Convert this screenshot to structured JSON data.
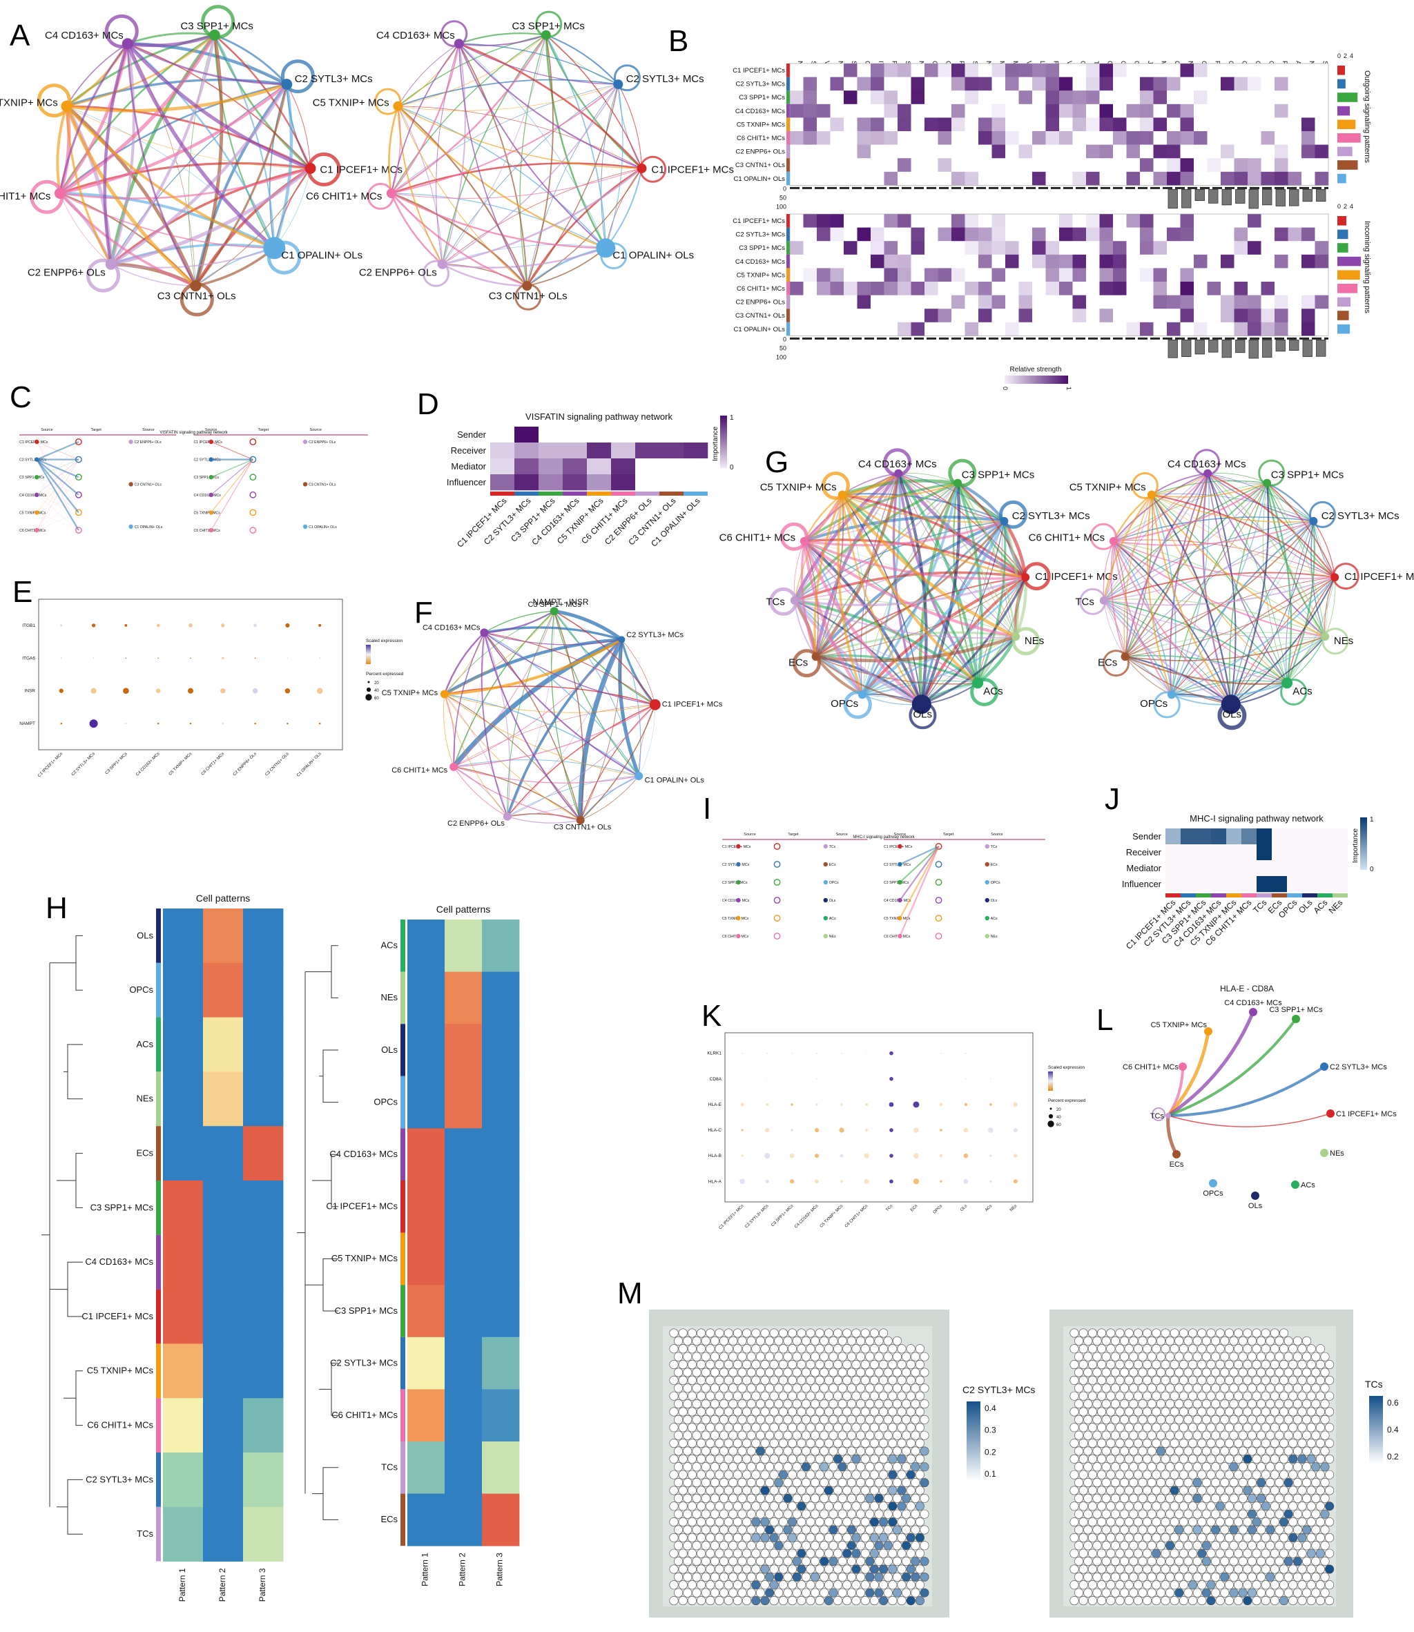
{
  "panels": [
    "A",
    "B",
    "C",
    "D",
    "E",
    "F",
    "G",
    "H",
    "I",
    "J",
    "K",
    "L",
    "M"
  ],
  "colors": {
    "C1 IPCEF1+ MCs": "#d62728",
    "C2 SYTL3+ MCs": "#2e74b5",
    "C3 SPP1+ MCs": "#3aa640",
    "C4 CD163+ MCs": "#8e44ad",
    "C5 TXNIP+ MCs": "#f39c12",
    "C6 CHIT1+ MCs": "#f06fa8",
    "C2 ENPP6+ OLs": "#c39bd3",
    "C3 CNTN1+ OLs": "#a0522d",
    "C1 OPALIN+ OLs": "#5dade2",
    "TCs": "#c39bd3",
    "ECs": "#a0522d",
    "OPCs": "#5dade2",
    "OLs": "#1f2a6e",
    "ACs": "#27ae60",
    "NEs": "#a9d18e",
    "heat_purple": "#4a0f6b",
    "heat_blue": "#0b3c6e"
  },
  "A": {
    "nodes": [
      "C3 SPP1+ MCs",
      "C2 SYTL3+ MCs",
      "C1 IPCEF1+ MCs",
      "C1 OPALIN+ OLs",
      "C3 CNTN1+ OLs",
      "C2 ENPP6+ OLs",
      "C6 CHIT1+ MCs",
      "C5 TXNIP+ MCs",
      "C4 CD163+ MCs"
    ]
  },
  "B": {
    "pathways": [
      "NECTIN",
      "SEMA6",
      "VEGF",
      "NGL",
      "SEMA5",
      "CDH",
      "ITGB2",
      "PTN",
      "SEMA3",
      "NRG",
      "CD99",
      "CD86",
      "PECAM1",
      "SEMA4",
      "NEGR",
      "MAG",
      "MPZ",
      "VISTA",
      "LAMININ",
      "FGF",
      "VISFATIN",
      "GALECTIN",
      "TGFb",
      "GAS",
      "COLLAGEN",
      "GRN",
      "JAM",
      "MHC-II",
      "CLDN",
      "NRXN",
      "CNTN",
      "PSAP",
      "CADM",
      "CDH1",
      "CD22",
      "COMPLEMENT",
      "PTPRM",
      "APP",
      "NCAM",
      "SPP1"
    ],
    "rows": [
      "C1 IPCEF1+ MCs",
      "C2 SYTL3+ MCs",
      "C3 SPP1+ MCs",
      "C4 CD163+ MCs",
      "C5 TXNIP+ MCs",
      "C6 CHIT1+ MCs",
      "C2 ENPP6+ OLs",
      "C3 CNTN1+ OLs",
      "C1 OPALIN+ OLs"
    ],
    "outgoing_label": "Outgoing signaling patterns",
    "incoming_label": "Incoming signaling patterns",
    "legend_title": "Relative strength",
    "legend_min": "0",
    "legend_max": "1",
    "bar_ticks": [
      "0",
      "50",
      "100"
    ],
    "side_ticks": [
      "0",
      "2",
      "4"
    ]
  },
  "C": {
    "title": "VISFATIN signaling pathway network",
    "source": "Source",
    "target": "Target",
    "left_rows": [
      "C1 IPCEF1+ MCs",
      "C2 SYTL3+ MCs",
      "C3 SPP1+ MCs",
      "C4 CD163+ MCs",
      "C5 TXNIP+ MCs",
      "C6 CHIT1+ MCs"
    ],
    "right_targets": [
      "C2 ENPP6+ OLs",
      "C3 CNTN1+ OLs",
      "C1 OPALIN+ OLs"
    ]
  },
  "D": {
    "title": "VISFATIN signaling pathway network",
    "rows": [
      "Sender",
      "Receiver",
      "Mediator",
      "Influencer"
    ],
    "cols": [
      "C1 IPCEF1+ MCs",
      "C2 SYTL3+ MCs",
      "C3 SPP1+ MCs",
      "C4 CD163+ MCs",
      "C5 TXNIP+ MCs",
      "C6 CHIT1+ MCs",
      "C2 ENPP6+ OLs",
      "C3 CNTN1+ OLs",
      "C1 OPALIN+ OLs"
    ],
    "values": [
      [
        0,
        1,
        0,
        0,
        0,
        0,
        0,
        0,
        0
      ],
      [
        0.15,
        0.35,
        0.25,
        0.25,
        0.85,
        0.2,
        0.8,
        0.8,
        0.85
      ],
      [
        0.1,
        0.7,
        0.4,
        0.7,
        0.15,
        0.85,
        0,
        0,
        0
      ],
      [
        0.6,
        0.9,
        0.5,
        0.8,
        0.4,
        0.9,
        0,
        0,
        0
      ]
    ],
    "legend_title": "Importance",
    "legend_min": "0",
    "legend_max": "1"
  },
  "E": {
    "genes": [
      "ITGB1",
      "ITGA6",
      "INSR",
      "NAMPT"
    ],
    "groups": [
      "C1 IPCEF1+ MCs",
      "C2 SYTL3+ MCs",
      "C3 SPP1+ MCs",
      "C4 CD163+ MCs",
      "C5 TXNIP+ MCs",
      "C6 CHIT1+ MCs",
      "C2 ENPP6+ OLs",
      "C3 CNTN1+ OLs",
      "C1 OPALIN+ OLs"
    ],
    "legend_scaled": "Scaled expression",
    "legend_pct": "Percent expressed",
    "pct_ticks": [
      "20",
      "40",
      "60"
    ]
  },
  "F": {
    "title": "NAMPT - INSR",
    "nodes": [
      "C3 SPP1+ MCs",
      "C2 SYTL3+ MCs",
      "C1 IPCEF1+ MCs",
      "C1 OPALIN+ OLs",
      "C3 CNTN1+ OLs",
      "C2 ENPP6+ OLs",
      "C6 CHIT1+ MCs",
      "C5 TXNIP+ MCs",
      "C4 CD163+ MCs"
    ]
  },
  "G": {
    "nodes": [
      "C4 CD163+ MCs",
      "C3 SPP1+ MCs",
      "C2 SYTL3+ MCs",
      "C1 IPCEF1+ MCs",
      "NEs",
      "ACs",
      "OLs",
      "OPCs",
      "ECs",
      "TCs",
      "C6 CHIT1+ MCs",
      "C5 TXNIP+ MCs"
    ]
  },
  "H": {
    "title": "Cell patterns",
    "left_rows": [
      "OLs",
      "OPCs",
      "ACs",
      "NEs",
      "ECs",
      "C3 SPP1+ MCs",
      "C4 CD163+ MCs",
      "C1 IPCEF1+ MCs",
      "C5 TXNIP+ MCs",
      "C6 CHIT1+ MCs",
      "C2 SYTL3+ MCs",
      "TCs"
    ],
    "left_values": [
      [
        0.3,
        0.8,
        0.1
      ],
      [
        0.1,
        0.85,
        0.1
      ],
      [
        0.3,
        0.62,
        0.35
      ],
      [
        0.1,
        0.65,
        0.35
      ],
      [
        0.1,
        0.1,
        0.9
      ],
      [
        0.9,
        0.1,
        0.1
      ],
      [
        0.9,
        0.1,
        0.1
      ],
      [
        0.9,
        0.1,
        0.1
      ],
      [
        0.7,
        0.3,
        0.3
      ],
      [
        0.6,
        0.1,
        0.45
      ],
      [
        0.5,
        0.1,
        0.52
      ],
      [
        0.47,
        0.2,
        0.55
      ]
    ],
    "right_rows": [
      "ACs",
      "NEs",
      "OLs",
      "OPCs",
      "C4 CD163+ MCs",
      "C1 IPCEF1+ MCs",
      "C5 TXNIP+ MCs",
      "C3 SPP1+ MCs",
      "C2 SYTL3+ MCs",
      "C6 CHIT1+ MCs",
      "TCs",
      "ECs"
    ],
    "right_values": [
      [
        0.3,
        0.55,
        0.45
      ],
      [
        0.1,
        0.8,
        0.3
      ],
      [
        0.2,
        0.85,
        0.1
      ],
      [
        0.15,
        0.85,
        0.1
      ],
      [
        0.9,
        0.1,
        0.1
      ],
      [
        0.9,
        0.1,
        0.1
      ],
      [
        0.9,
        0.1,
        0.1
      ],
      [
        0.85,
        0.2,
        0.1
      ],
      [
        0.6,
        0.1,
        0.45
      ],
      [
        0.75,
        0.1,
        0.38
      ],
      [
        0.47,
        0.25,
        0.55
      ],
      [
        0.1,
        0.1,
        0.9
      ]
    ],
    "cols": [
      "Pattern 1",
      "Pattern 2",
      "Pattern 3"
    ]
  },
  "I": {
    "title": "MHC-I signaling pathway network",
    "source": "Source",
    "target": "Target",
    "left_rows": [
      "C1 IPCEF1+ MCs",
      "C2 SYTL3+ MCs",
      "C3 SPP1+ MCs",
      "C4 CD163+ MCs",
      "C5 TXNIP+ MCs",
      "C6 CHIT1+ MCs"
    ],
    "right_targets": [
      "TCs",
      "ECs",
      "OPCs",
      "OLs",
      "ACs",
      "NEs"
    ]
  },
  "J": {
    "title": "MHC-I signaling pathway network",
    "rows": [
      "Sender",
      "Receiver",
      "Mediator",
      "Influencer"
    ],
    "cols": [
      "C1 IPCEF1+ MCs",
      "C2 SYTL3+ MCs",
      "C3 SPP1+ MCs",
      "C4 CD163+ MCs",
      "C5 TXNIP+ MCs",
      "C6 CHIT1+ MCs",
      "TCs",
      "ECs",
      "OPCs",
      "OLs",
      "ACs",
      "NEs"
    ],
    "values": [
      [
        0.3,
        0.8,
        0.8,
        0.85,
        0.3,
        0.6,
        1,
        0,
        0,
        0,
        0,
        0
      ],
      [
        0,
        0,
        0,
        0,
        0,
        0,
        1,
        0,
        0,
        0,
        0,
        0
      ],
      [
        0,
        0,
        0,
        0,
        0,
        0,
        0,
        0,
        0,
        0,
        0,
        0
      ],
      [
        0,
        0,
        0,
        0,
        0,
        0,
        1,
        1,
        0,
        0,
        0,
        0
      ]
    ],
    "legend_title": "Importance",
    "legend_min": "0",
    "legend_max": "1"
  },
  "K": {
    "genes": [
      "KLRK1",
      "CD8A",
      "HLA-E",
      "HLA-C",
      "HLA-B",
      "HLA-A"
    ],
    "groups": [
      "C1 IPCEF1+ MCs",
      "C2 SYTL3+ MCs",
      "C3 SPP1+ MCs",
      "C4 CD163+ MCs",
      "C5 TXNIP+ MCs",
      "C6 CHIT1+ MCs",
      "TCs",
      "ECs",
      "OPCs",
      "OLs",
      "ACs",
      "NEs"
    ],
    "legend_scaled": "Scaled expression",
    "legend_pct": "Percent expressed",
    "pct_ticks": [
      "20",
      "40",
      "60"
    ]
  },
  "L": {
    "title": "HLA-E - CD8A",
    "nodes": [
      "TCs",
      "C6 CHIT1+ MCs",
      "C5 TXNIP+ MCs",
      "C4 CD163+ MCs",
      "C3 SPP1+ MCs",
      "C2 SYTL3+ MCs",
      "C1 IPCEF1+ MCs",
      "NEs",
      "ACs",
      "OLs",
      "OPCs",
      "ECs"
    ]
  },
  "M": {
    "left_title": "C2 SYTL3+ MCs",
    "left_ticks": [
      "0.4",
      "0.3",
      "0.2",
      "0.1"
    ],
    "right_title": "TCs",
    "right_ticks": [
      "0.6",
      "0.4",
      "0.2"
    ]
  }
}
